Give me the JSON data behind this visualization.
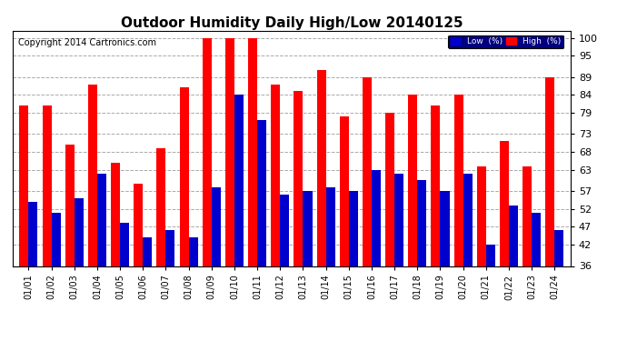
{
  "title": "Outdoor Humidity Daily High/Low 20140125",
  "copyright": "Copyright 2014 Cartronics.com",
  "categories": [
    "01/01",
    "01/02",
    "01/03",
    "01/04",
    "01/05",
    "01/06",
    "01/07",
    "01/08",
    "01/09",
    "01/10",
    "01/11",
    "01/12",
    "01/13",
    "01/14",
    "01/15",
    "01/16",
    "01/17",
    "01/18",
    "01/19",
    "01/20",
    "01/21",
    "01/22",
    "01/23",
    "01/24"
  ],
  "high_values": [
    81,
    81,
    70,
    87,
    65,
    59,
    69,
    86,
    100,
    100,
    100,
    87,
    85,
    91,
    78,
    89,
    79,
    84,
    81,
    84,
    64,
    71,
    64,
    89
  ],
  "low_values": [
    54,
    51,
    55,
    62,
    48,
    44,
    46,
    44,
    58,
    84,
    77,
    56,
    57,
    58,
    57,
    63,
    62,
    60,
    57,
    62,
    42,
    53,
    51,
    46
  ],
  "high_color": "#ff0000",
  "low_color": "#0000cc",
  "background_color": "#ffffff",
  "grid_color": "#aaaaaa",
  "ylim": [
    36,
    102
  ],
  "yticks": [
    36,
    42,
    47,
    52,
    57,
    63,
    68,
    73,
    79,
    84,
    89,
    95,
    100
  ],
  "title_fontsize": 11,
  "copyright_fontsize": 7,
  "legend_low_label": "Low  (%)",
  "legend_high_label": "High  (%)"
}
